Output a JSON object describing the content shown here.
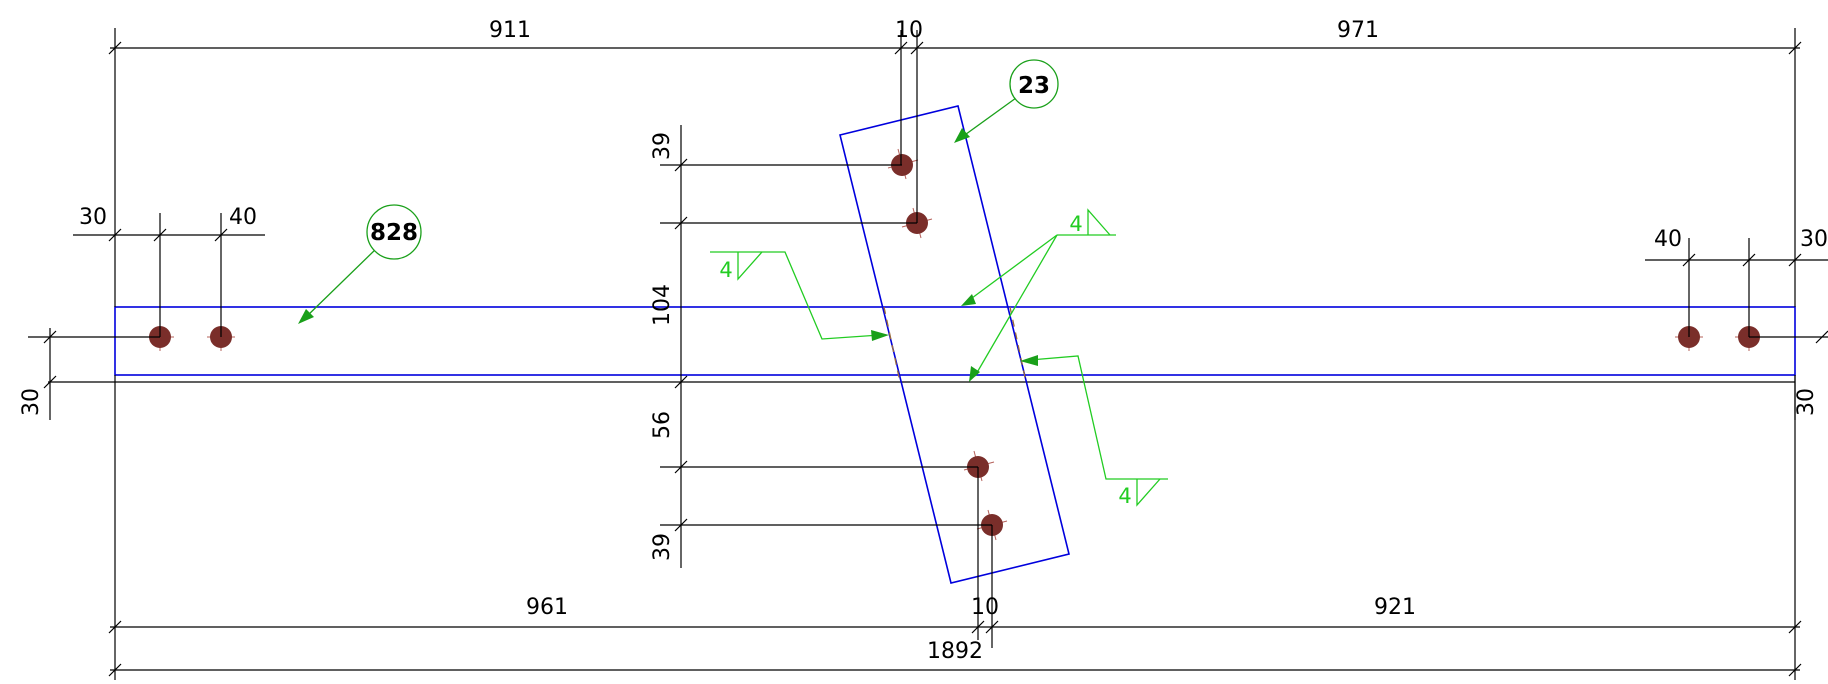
{
  "dimensions": {
    "top_left": "911",
    "top_mid": "10",
    "top_right": "971",
    "left_edge": "30",
    "left_pitch": "40",
    "right_pitch": "40",
    "right_edge": "30",
    "v_upper_a": "39",
    "v_upper_b": "104",
    "v_lower_a": "56",
    "v_lower_b": "39",
    "left_side": "30",
    "right_side": "30",
    "bottom_left": "961",
    "bottom_mid": "10",
    "bottom_right": "921",
    "overall": "1892"
  },
  "tags": {
    "beam": "828",
    "plate": "23"
  },
  "welds": {
    "top_left": "4",
    "top_right": "4",
    "bottom_right": "4"
  },
  "colors": {
    "outline": "#0000dd",
    "weld": "#22cc22",
    "bolt": "#7a2e2a"
  }
}
